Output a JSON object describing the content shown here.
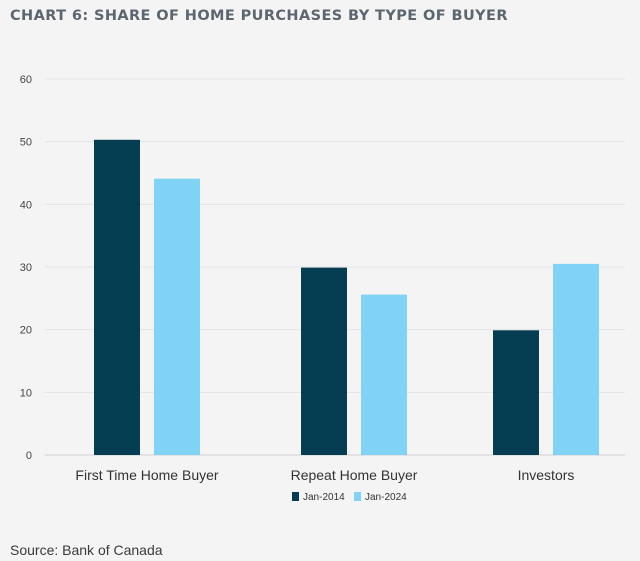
{
  "chart_data": {
    "type": "bar",
    "title": "CHART 6: SHARE OF HOME PURCHASES BY TYPE OF BUYER",
    "categories": [
      "First Time Home Buyer",
      "Repeat Home Buyer",
      "Investors"
    ],
    "series": [
      {
        "name": "Jan-2014",
        "color": "#053e52",
        "values": [
          50.3,
          29.9,
          19.9
        ]
      },
      {
        "name": "Jan-2024",
        "color": "#81d3f6",
        "values": [
          44.1,
          25.6,
          30.5
        ]
      }
    ],
    "xlabel": "",
    "ylabel": "",
    "ylim": [
      0,
      60
    ],
    "yticks": [
      0,
      10,
      20,
      30,
      40,
      50,
      60
    ],
    "grid": true,
    "legend": "bottom-center",
    "source": "Source: Bank of Canada"
  }
}
